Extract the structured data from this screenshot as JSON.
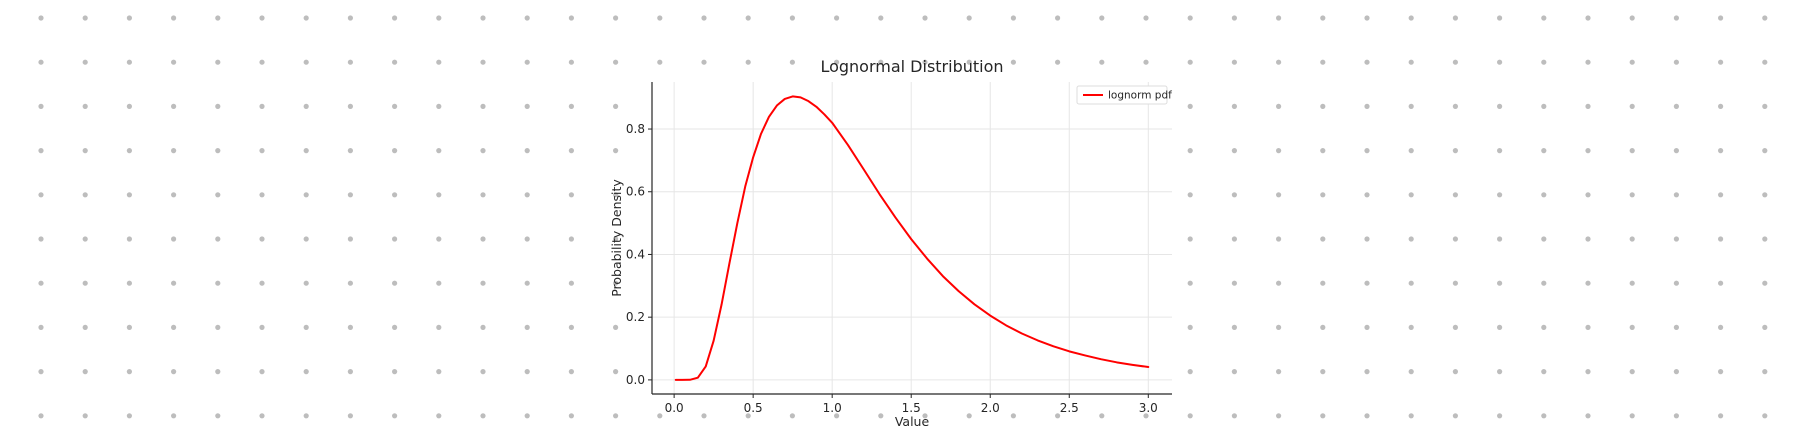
{
  "chart_data": {
    "type": "line",
    "title": "Lognormal Distribution",
    "xlabel": "Value",
    "ylabel": "Probability Density",
    "xlim": [
      -0.14,
      3.15
    ],
    "ylim": [
      -0.045,
      0.95
    ],
    "x_ticks": [
      0.0,
      0.5,
      1.0,
      1.5,
      2.0,
      2.5,
      3.0
    ],
    "x_tick_labels": [
      "0.0",
      "0.5",
      "1.0",
      "1.5",
      "2.0",
      "2.5",
      "3.0"
    ],
    "y_ticks": [
      0.0,
      0.2,
      0.4,
      0.6,
      0.8
    ],
    "y_tick_labels": [
      "0.0",
      "0.2",
      "0.4",
      "0.6",
      "0.8"
    ],
    "grid": true,
    "legend_position": "top-right",
    "series": [
      {
        "name": "lognorm pdf",
        "color": "#ff0000",
        "x": [
          0.01,
          0.05,
          0.1,
          0.15,
          0.2,
          0.25,
          0.3,
          0.35,
          0.4,
          0.45,
          0.5,
          0.55,
          0.6,
          0.65,
          0.7,
          0.75,
          0.8,
          0.85,
          0.9,
          0.95,
          1.0,
          1.1,
          1.2,
          1.3,
          1.4,
          1.5,
          1.6,
          1.7,
          1.8,
          1.9,
          2.0,
          2.1,
          2.2,
          2.3,
          2.4,
          2.5,
          2.6,
          2.7,
          2.8,
          2.9,
          3.0
        ],
        "y": [
          0.0,
          0.0,
          0.0003,
          0.007,
          0.043,
          0.125,
          0.24,
          0.372,
          0.5,
          0.617,
          0.71,
          0.785,
          0.839,
          0.875,
          0.896,
          0.904,
          0.901,
          0.889,
          0.871,
          0.847,
          0.82,
          0.749,
          0.671,
          0.592,
          0.518,
          0.449,
          0.387,
          0.331,
          0.283,
          0.241,
          0.205,
          0.174,
          0.148,
          0.126,
          0.107,
          0.091,
          0.078,
          0.066,
          0.056,
          0.048,
          0.041
        ]
      }
    ]
  }
}
